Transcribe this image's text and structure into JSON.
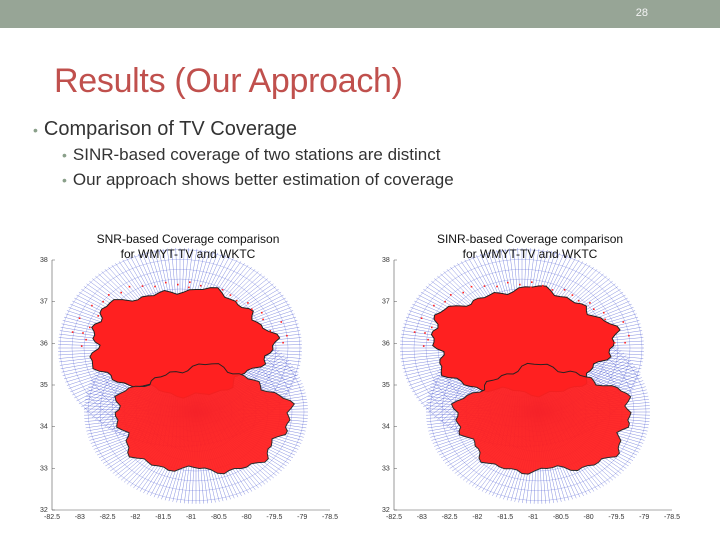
{
  "slide": {
    "number": "28",
    "title": "Results (Our Approach)",
    "bullet_main": "Comparison of TV Coverage",
    "sub_bullets": [
      "SINR-based coverage of two stations are distinct",
      "Our approach shows better estimation of coverage"
    ]
  },
  "colors": {
    "topbar": "#97a596",
    "title": "#c0504d",
    "coverage_fill": "#ff2020",
    "grid_lines": "#3344cc"
  },
  "figures": [
    {
      "title_line1": "SNR-based Coverage comparison",
      "title_line2": "for WMYT-TV and WKTC",
      "y_ticks": [
        "38",
        "37",
        "36",
        "35",
        "34",
        "33",
        "32"
      ],
      "x_ticks": [
        "-82.5",
        "-83",
        "-82.5",
        "-82",
        "-81.5",
        "-81",
        "-80.5",
        "-80",
        "-79.5",
        "-79",
        "-78.5"
      ]
    },
    {
      "title_line1": "SINR-based Coverage comparison",
      "title_line2": "for WMYT-TV and WKTC",
      "y_ticks": [
        "38",
        "37",
        "36",
        "35",
        "34",
        "33",
        "32"
      ],
      "x_ticks": [
        "-82.5",
        "-83",
        "-82.5",
        "-82",
        "-81.5",
        "-81",
        "-80.5",
        "-80",
        "-79.5",
        "-79",
        "-78.5"
      ]
    }
  ]
}
